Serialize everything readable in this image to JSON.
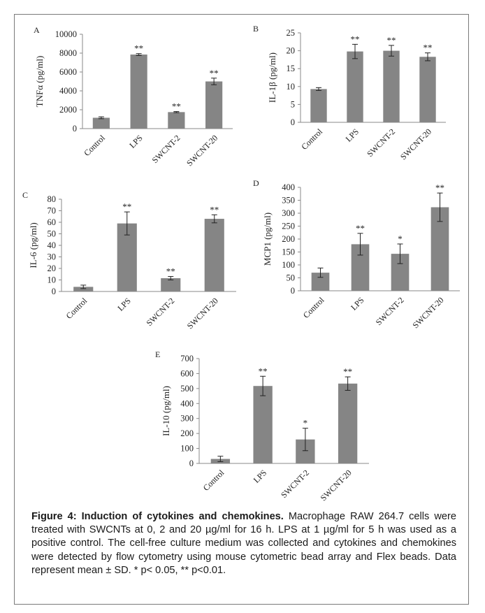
{
  "caption": {
    "label": "Figure 4: Induction of cytokines and chemokines.",
    "text": "Macrophage RAW 264.7 cells were treated with SWCNTs at 0, 2 and 20 µg/ml for 16 h. LPS at 1 µg/ml for 5 h was used as a positive control. The cell-free culture medium was collected and cytokines and chemokines were detected by flow cytometry using mouse cytometric bead array and Flex beads. Data represent mean ± SD. * p< 0.05, ** p<0.01."
  },
  "chart_data": [
    {
      "panel": "A",
      "type": "bar",
      "ylabel": "TNFα (pg/ml)",
      "ylim": [
        0,
        10000
      ],
      "yticks": [
        0,
        2000,
        4000,
        6000,
        8000,
        10000
      ],
      "categories": [
        "Control",
        "LPS",
        "SWCNT-2",
        "SWCNT-20"
      ],
      "values": [
        1150,
        7850,
        1750,
        5000
      ],
      "errors": [
        100,
        100,
        60,
        350
      ],
      "significance": [
        "",
        "**",
        "**",
        "**"
      ]
    },
    {
      "panel": "B",
      "type": "bar",
      "ylabel": "IL-1β (pg/ml)",
      "ylim": [
        0,
        25
      ],
      "yticks": [
        0,
        5,
        10,
        15,
        20,
        25
      ],
      "categories": [
        "Control",
        "LPS",
        "SWCNT-2",
        "SWCNT-20"
      ],
      "values": [
        9.3,
        19.8,
        20.0,
        18.3
      ],
      "errors": [
        0.4,
        2.0,
        1.5,
        1.1
      ],
      "significance": [
        "",
        "**",
        "**",
        "**"
      ]
    },
    {
      "panel": "C",
      "type": "bar",
      "ylabel": "IL-6 (pg/ml)",
      "ylim": [
        0,
        80
      ],
      "yticks": [
        0,
        10,
        20,
        30,
        40,
        50,
        60,
        70,
        80
      ],
      "categories": [
        "Control",
        "LPS",
        "SWCNT-2",
        "SWCNT-20"
      ],
      "values": [
        4,
        59,
        11.5,
        63
      ],
      "errors": [
        1.5,
        10,
        1.5,
        3.5
      ],
      "significance": [
        "",
        "**",
        "**",
        "**"
      ]
    },
    {
      "panel": "D",
      "type": "bar",
      "ylabel": "MCP1 (pg/ml)",
      "ylim": [
        0,
        400
      ],
      "yticks": [
        0,
        50,
        100,
        150,
        200,
        250,
        300,
        350,
        400
      ],
      "categories": [
        "Control",
        "LPS",
        "SWCNT-2",
        "SWCNT-20"
      ],
      "values": [
        70,
        180,
        143,
        323
      ],
      "errors": [
        18,
        42,
        38,
        55
      ],
      "significance": [
        "",
        "**",
        "*",
        "**"
      ]
    },
    {
      "panel": "E",
      "type": "bar",
      "ylabel": "IL-10 (pg/ml)",
      "ylim": [
        0,
        700
      ],
      "yticks": [
        0,
        100,
        200,
        300,
        400,
        500,
        600,
        700
      ],
      "categories": [
        "Control",
        "LPS",
        "SWCNT-2",
        "SWCNT-20"
      ],
      "values": [
        30,
        517,
        160,
        533
      ],
      "errors": [
        18,
        65,
        75,
        45
      ],
      "significance": [
        "",
        "**",
        "*",
        "**"
      ]
    }
  ]
}
